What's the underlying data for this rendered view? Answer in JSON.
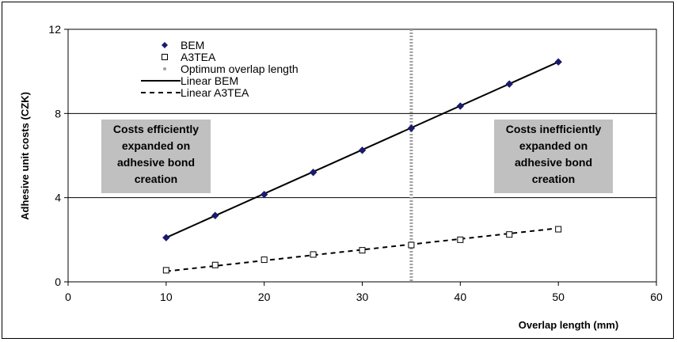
{
  "chart_data": {
    "type": "scatter",
    "xlabel": "Overlap length (mm)",
    "ylabel": "Adhesive unit costs (CZK)",
    "xlim": [
      0,
      60
    ],
    "ylim": [
      0,
      12
    ],
    "xticks": [
      0,
      10,
      20,
      30,
      40,
      50,
      60
    ],
    "yticks": [
      0,
      4,
      8,
      12
    ],
    "grid": "horizontal",
    "legend_position": "top-left",
    "series": [
      {
        "name": "BEM",
        "marker": "diamond",
        "color": "#1a1a6e",
        "x": [
          10,
          15,
          20,
          25,
          30,
          35,
          40,
          45,
          50
        ],
        "y": [
          2.1,
          3.15,
          4.15,
          5.2,
          6.25,
          7.3,
          8.35,
          9.4,
          10.45
        ]
      },
      {
        "name": "A3TEA",
        "marker": "square-open",
        "color": "#000000",
        "x": [
          10,
          15,
          20,
          25,
          30,
          35,
          40,
          45,
          50
        ],
        "y": [
          0.55,
          0.8,
          1.05,
          1.3,
          1.5,
          1.75,
          2.0,
          2.25,
          2.5
        ]
      },
      {
        "name": "Optimum overlap length",
        "marker": "dot",
        "color": "#a0a0a0",
        "x": 35
      },
      {
        "name": "Linear BEM",
        "style": "solid",
        "color": "#000000",
        "x": [
          10,
          50
        ],
        "y": [
          2.1,
          10.45
        ]
      },
      {
        "name": "Linear A3TEA",
        "style": "dashed",
        "color": "#000000",
        "x": [
          10,
          50
        ],
        "y": [
          0.5,
          2.55
        ]
      }
    ],
    "annotations": [
      {
        "lines": [
          "Costs efficiently",
          "expanded on",
          "adhesive bond",
          "creation"
        ]
      },
      {
        "lines": [
          "Costs inefficiently",
          "expanded on",
          "adhesive bond",
          "creation"
        ]
      }
    ]
  }
}
